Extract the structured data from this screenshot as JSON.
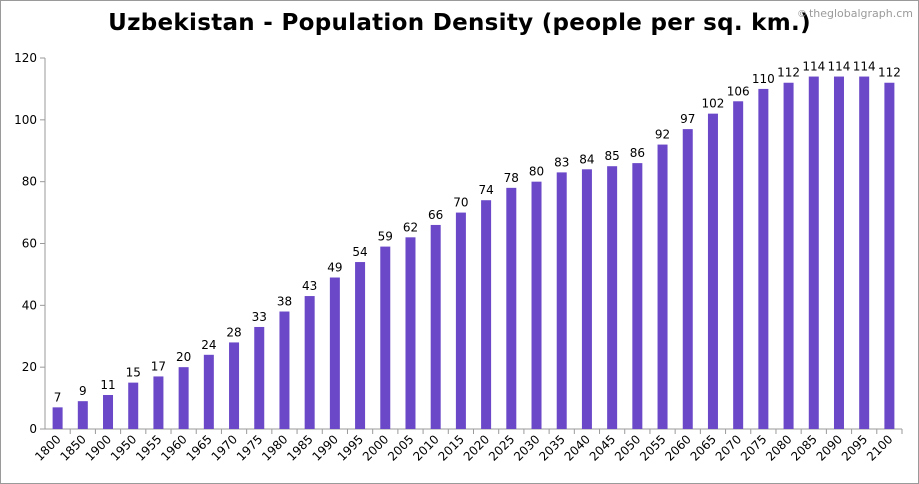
{
  "chart_data": {
    "type": "bar",
    "title": "Uzbekistan - Population Density (people per sq. km.)",
    "xlabel": "",
    "ylabel": "",
    "categories": [
      "1800",
      "1850",
      "1900",
      "1950",
      "1955",
      "1960",
      "1965",
      "1970",
      "1975",
      "1980",
      "1985",
      "1990",
      "1995",
      "2000",
      "2005",
      "2010",
      "2015",
      "2020",
      "2025",
      "2030",
      "2035",
      "2040",
      "2045",
      "2050",
      "2055",
      "2060",
      "2065",
      "2070",
      "2075",
      "2080",
      "2085",
      "2090",
      "2095",
      "2100"
    ],
    "values": [
      7,
      9,
      11,
      15,
      17,
      20,
      24,
      28,
      33,
      38,
      43,
      49,
      54,
      59,
      62,
      66,
      70,
      74,
      78,
      80,
      83,
      84,
      85,
      86,
      92,
      97,
      102,
      106,
      110,
      112,
      114,
      114,
      114,
      112
    ],
    "ylim": [
      0,
      120
    ],
    "yticks": [
      0,
      20,
      40,
      60,
      80,
      100,
      120
    ],
    "grid": false,
    "legend": "none",
    "bar_color": "#6a48c8",
    "axis_color": "#9a9a9a"
  },
  "watermark": {
    "text": "theglobalgraph.cm",
    "icon": "copyright-icon",
    "icon_glyph": "©"
  }
}
